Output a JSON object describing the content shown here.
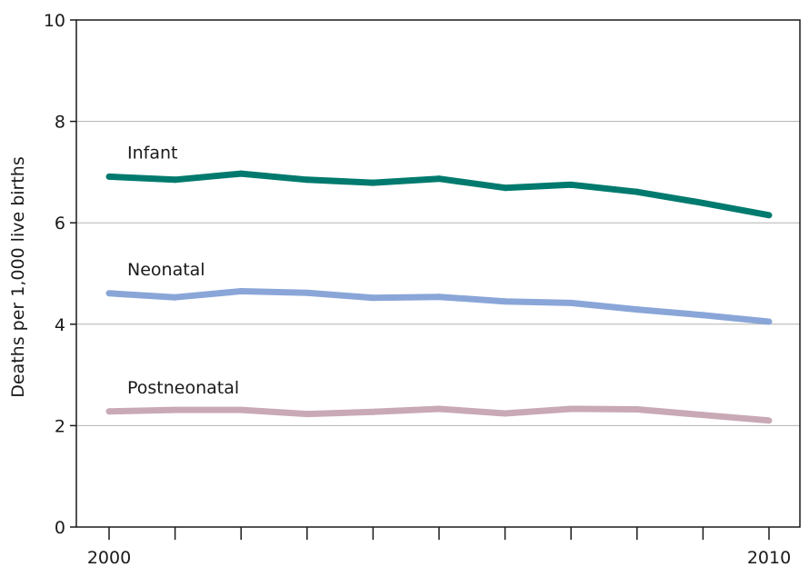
{
  "chart_data": {
    "type": "line",
    "title": "",
    "xlabel": "",
    "ylabel": "Deaths per 1,000 live births",
    "x": [
      2000,
      2001,
      2002,
      2003,
      2004,
      2005,
      2006,
      2007,
      2008,
      2009,
      2010
    ],
    "x_tick_labels": [
      {
        "x": 2000,
        "label": "2000"
      },
      {
        "x": 2010,
        "label": "2010"
      }
    ],
    "xlim": [
      2000,
      2010
    ],
    "ylim": [
      0,
      10
    ],
    "y_ticks": [
      0,
      2,
      4,
      6,
      8,
      10
    ],
    "y_tick_labels": [
      "0",
      "2",
      "4",
      "6",
      "8",
      "10"
    ],
    "grid": true,
    "legend": "none",
    "series": [
      {
        "name": "Infant",
        "color": "#007a6e",
        "values": [
          6.91,
          6.85,
          6.97,
          6.85,
          6.79,
          6.87,
          6.69,
          6.75,
          6.61,
          6.39,
          6.15
        ]
      },
      {
        "name": "Neonatal",
        "color": "#8aa6d8",
        "values": [
          4.61,
          4.53,
          4.65,
          4.62,
          4.52,
          4.54,
          4.45,
          4.42,
          4.29,
          4.18,
          4.05
        ]
      },
      {
        "name": "Postneonatal",
        "color": "#c9a9b6",
        "values": [
          2.28,
          2.31,
          2.31,
          2.23,
          2.27,
          2.33,
          2.24,
          2.33,
          2.32,
          2.21,
          2.1
        ]
      }
    ]
  }
}
